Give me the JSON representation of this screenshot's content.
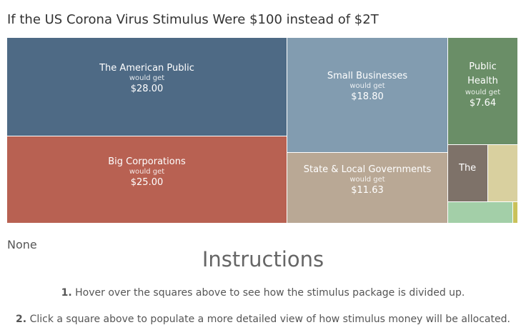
{
  "title": "If the US Corona Virus Stimulus Were $100 instead of $2T",
  "chart_data": {
    "type": "treemap",
    "title": "If the US Corona Virus Stimulus Were $100 instead of $2T",
    "sublabel": "would get",
    "items": [
      {
        "label": "The American Public",
        "value": 28.0,
        "display": "$28.00",
        "color": "#4e6a85"
      },
      {
        "label": "Big Corporations",
        "value": 25.0,
        "display": "$25.00",
        "color": "#b86152"
      },
      {
        "label": "Small Businesses",
        "value": 18.8,
        "display": "$18.80",
        "color": "#829cb0"
      },
      {
        "label": "State & Local Governments",
        "value": 11.63,
        "display": "$11.63",
        "color": "#b9a895"
      },
      {
        "label": "Public Health",
        "value": 7.64,
        "display": "$7.64",
        "color": "#6a8e67"
      },
      {
        "label": "The",
        "value": null,
        "display": "",
        "color": "#7e7269"
      },
      {
        "label": "",
        "value": null,
        "display": "",
        "color": "#d9d09f"
      },
      {
        "label": "",
        "value": null,
        "display": "",
        "color": "#a3cfa8"
      },
      {
        "label": "",
        "value": null,
        "display": "",
        "color": "#c9c15a"
      }
    ]
  },
  "none_text": "None",
  "instructions": {
    "title": "Instructions",
    "steps": [
      {
        "num": "1.",
        "text": "Hover over the squares above to see how the stimulus package is divided up."
      },
      {
        "num": "2.",
        "text": "Click a square above to populate a more detailed view of how stimulus money will be allocated."
      }
    ]
  }
}
